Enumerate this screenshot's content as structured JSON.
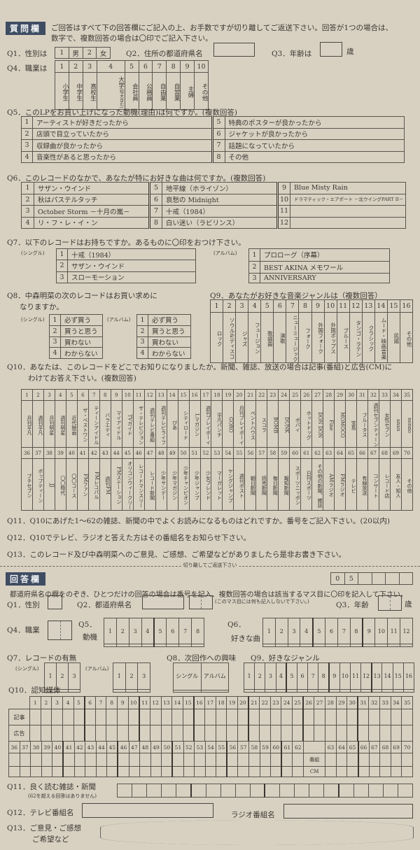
{
  "question_section": {
    "badge": "質問欄",
    "instructions": [
      "ご回答はすべて下の回答欄にご記入の上、お手数ですが切り離してご返送下さい。回答が1つの場合は、",
      "数字で、複数回答の場合は〇印でご記入下さい。"
    ]
  },
  "q1": {
    "label": "Q1．性別は",
    "options": [
      {
        "num": "1",
        "text": "男"
      },
      {
        "num": "2",
        "text": "女"
      }
    ]
  },
  "q2": {
    "label": "Q2．住所の都道府県名"
  },
  "q3": {
    "label": "Q3．年齢は",
    "unit": "歳"
  },
  "q4": {
    "label": "Q4．職業は",
    "options": [
      {
        "num": "1",
        "text": "小学生"
      },
      {
        "num": "2",
        "text": "中学生"
      },
      {
        "num": "3",
        "text": "高校生"
      },
      {
        "num": "4",
        "text": "大学",
        "note": "(短大含む)"
      },
      {
        "num": "5",
        "text": "会社員"
      },
      {
        "num": "6",
        "text": "公務員"
      },
      {
        "num": "7",
        "text": "自由業"
      },
      {
        "num": "8",
        "text": "自営業"
      },
      {
        "num": "9",
        "text": "主婦"
      },
      {
        "num": "10",
        "text": "その他"
      }
    ]
  },
  "q5": {
    "title": "Q5．このLPをお買い上げになった動機(理由)は何ですか。(複数回答)",
    "options": [
      "アーティストが好きだったから",
      "店頭で目立っていたから",
      "収録曲が良かったから",
      "音楽性があると思ったから",
      "特典のポスターが良かったから",
      "ジャケットが良かったから",
      "話題になっていたから",
      "その他"
    ]
  },
  "q6": {
    "title": "Q6．このレコードのなかで、あなたが特にお好きな曲は何ですか。(複数回答)",
    "options": [
      "サザン・ウインド",
      "秋はパステルタッチ",
      "October Storm －十月の嵐－",
      "リ・フ・レ・イ・ン",
      "地平線（ホライゾン）",
      "哀愁の Midnight",
      "十戒（1984）",
      "白い迷い（ラビリンス）",
      "Blue Misty Rain",
      "ドラマティック・エアポート －北ウイングPART II－",
      "",
      ""
    ]
  },
  "q7": {
    "title": "Q7．以下のレコードはお持ちですか。あるものに〇印をおつけ下さい。",
    "single_label": "(シングル)",
    "album_label": "(アルバム)",
    "singles": [
      "十戒（1984）",
      "サザン・ウインド",
      "スローモーション"
    ],
    "albums": [
      "プロローグ（序幕）",
      "BEST AKINA メモワール",
      "ANNIVERSARY"
    ]
  },
  "q8": {
    "title": [
      "Q8．中森明菜の次のレコードはお買い求めに",
      "なりますか。"
    ],
    "single_label": "(シングル)",
    "album_label": "(アルバム)",
    "options": [
      "必ず買う",
      "買うと思う",
      "買わない",
      "わからない"
    ]
  },
  "q9": {
    "title": "Q9．あなたがお好きな音楽ジャンルは（複数回答）",
    "genres": [
      "ロック",
      "ソウル&ディスコ",
      "ジャズ",
      "フュージョン",
      "歌謡曲",
      "演歌",
      "ニューミュージック",
      "フォーク",
      "外国フォーク",
      "外国ポップス",
      "ブルース",
      "タンゴ・ラテン",
      "クラシック",
      "ムード・映画音楽",
      "民謡",
      "その他"
    ]
  },
  "q10": {
    "title": [
      "Q10．あなたは、このレコードをどこでお知りになりましたか。新聞、雑誌、放送の場合は記事(番組)と広告(CM)に",
      "わけてお答え下さい。(複数回答)"
    ],
    "media": [
      "月刊平凡",
      "週刊平凡",
      "月刊明星",
      "週刊明星",
      "近代映画",
      "ザ・ベストワン",
      "ティーンアイドル",
      "バラエティ",
      "マイアイドル",
      "TVガイド",
      "ザ・テレビジョン",
      "週刊テレビ番組",
      "週刊テレビライフ",
      "ぴあ",
      "シティロード",
      "Lマガジン",
      "週刊プレイボーイ",
      "平凡パンチ",
      "GORO",
      "月刊プレイボーイ",
      "ペントハウス",
      "スコラ",
      "BOMB",
      "DUNK",
      "ポパイ",
      "ホットドッグ",
      "DON DON",
      "Fine",
      "MOMOCO",
      "宝島",
      "ブルータス",
      "週刊セブンティーン",
      "女性セブン",
      "anan",
      "nonno",
      "プチセブン",
      "ポップティーン",
      "JJ",
      "〇〇時代",
      "〇〇コース",
      "FMファン",
      "FMレコパル",
      "週刊FM",
      "FMステーション",
      "オリコンウィークリー",
      "レコードマンスリー",
      "レコード新聞",
      "少年サンデー",
      "少年マガジン",
      "少年チャンピオン",
      "少年ジャンプ",
      "少女フレンド",
      "マーガレット",
      "ヤングジャンプ",
      "週刊ポスト",
      "朝日新聞",
      "読売新聞",
      "毎日新聞",
      "報知新聞",
      "スポーツニッポン",
      "日刊スポーツ",
      "その他の新聞、雑誌",
      "AMラジオ",
      "FMラジオ",
      "テレビ",
      "有線放送",
      "コンサート",
      "レコード店",
      "友人・知人",
      "その他"
    ]
  },
  "q11": {
    "text": "Q11．Q10にあげた1～62の雑誌、新聞の中でよくお読みになるものはどれですか。番号をご記入下さい。(20以内)"
  },
  "q12": {
    "text": "Q12．Q10でテレビ、ラジオと答えた方はその番組名をお知らせ下さい。"
  },
  "q13": {
    "text": "Q13．このレコード及び中森明菜へのご意見、ご感想、ご希望などがありましたら是非お書き下さい。"
  },
  "cut_line": "切り離してご返送下さい",
  "answer_section": {
    "badge": "回答欄",
    "code": [
      "0",
      "5",
      "",
      "",
      "",
      ""
    ],
    "instructions": "都道府県名の欄をのぞき、ひとつだけの回答の場合は番号を記入、複数回答の場合は該当するマス目に〇印を記入して下さい。",
    "q1": "Q1．性別",
    "q2": "Q2．都道府県名",
    "q2_note": "(このマス目には何も記入しないで下さい。)",
    "q3": "Q3．年齢",
    "q3_unit": "歳",
    "q4": "Q4．職業",
    "q5": [
      "Q5．",
      "動機"
    ],
    "q6": [
      "Q6．",
      "好きな曲"
    ],
    "q7": "Q7．レコードの有無",
    "q7_single": "(シングル)",
    "q7_album": "(アルバム)",
    "q8": "Q8．次回作への興味",
    "q8_cols": [
      "シングル",
      "アルバム"
    ],
    "q9": "Q9．好きなジャンル",
    "q10": "Q10．認知媒体",
    "q10_rows": [
      "記事",
      "広告",
      "番組",
      "CM"
    ],
    "q11": "Q11．良く読む雑誌・新聞",
    "q11_note": "(62を超える回答はありません)",
    "q12_tv": "Q12．テレビ番組名",
    "q12_radio": "ラジオ番組名",
    "q13": [
      "Q13．ご意見・ご感想",
      "ご希望など"
    ]
  }
}
